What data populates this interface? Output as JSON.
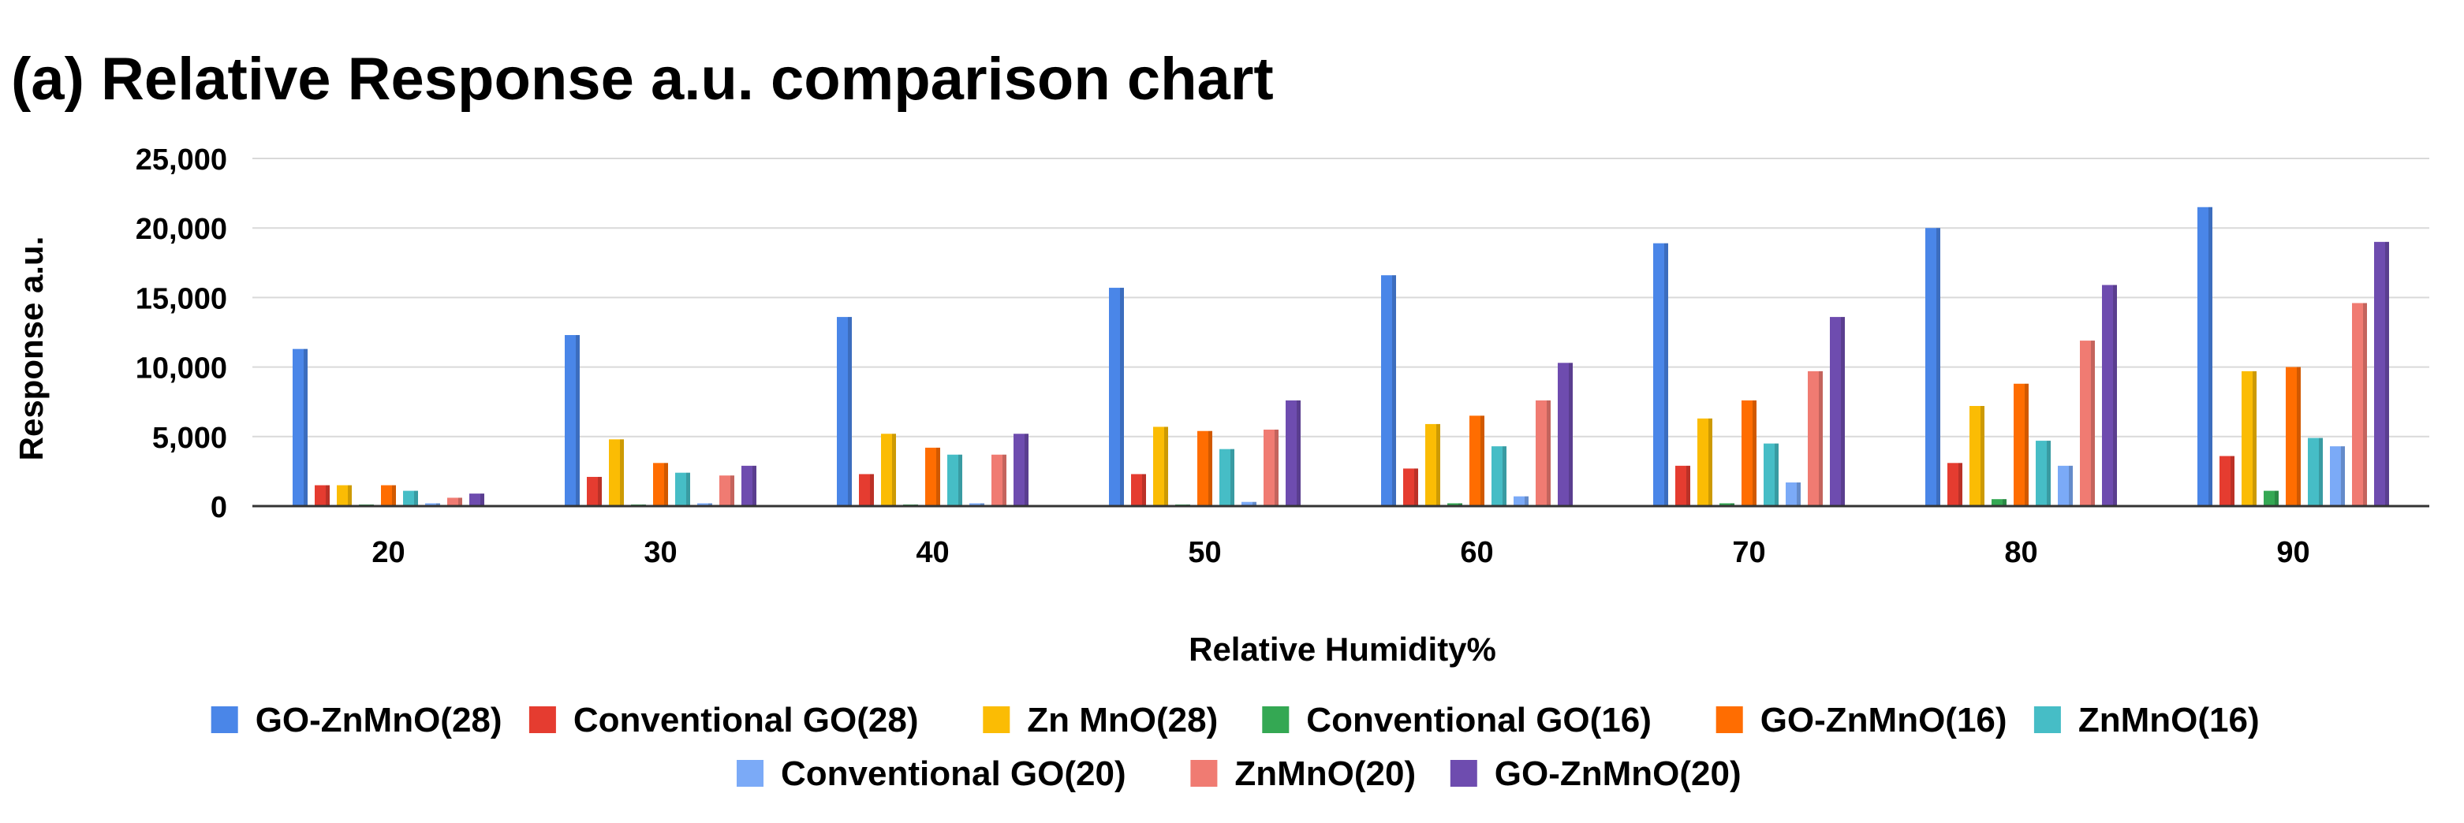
{
  "chart_data": {
    "type": "bar",
    "title": "(a)  Relative Response a.u. comparison chart",
    "xlabel": "Relative Humidity%",
    "ylabel": "Response a.u.",
    "ylim": [
      0,
      25000
    ],
    "yticks": [
      0,
      5000,
      10000,
      15000,
      20000,
      25000
    ],
    "ytick_labels": [
      "0",
      "5,000",
      "10,000",
      "15,000",
      "20,000",
      "25,000"
    ],
    "grid": true,
    "legend_position": "bottom",
    "categories": [
      "20",
      "30",
      "40",
      "50",
      "60",
      "70",
      "80",
      "90"
    ],
    "series": [
      {
        "name": "GO-ZnMnO(28)",
        "color": "#4a86e8",
        "values": [
          11300,
          12300,
          13600,
          15700,
          16600,
          18900,
          20000,
          21500
        ]
      },
      {
        "name": "Conventional GO(28)",
        "color": "#e53c30",
        "values": [
          1500,
          2100,
          2300,
          2300,
          2700,
          2900,
          3100,
          3600
        ]
      },
      {
        "name": "Zn MnO(28)",
        "color": "#fbbc04",
        "values": [
          1500,
          4800,
          5200,
          5700,
          5900,
          6300,
          7200,
          9700
        ]
      },
      {
        "name": "Conventional GO(16)",
        "color": "#34a853",
        "values": [
          100,
          100,
          100,
          100,
          200,
          200,
          500,
          1100
        ]
      },
      {
        "name": "GO-ZnMnO(16)",
        "color": "#ff6d01",
        "values": [
          1500,
          3100,
          4200,
          5400,
          6500,
          7600,
          8800,
          10000
        ]
      },
      {
        "name": "ZnMnO(16)",
        "color": "#46bdc6",
        "values": [
          1100,
          2400,
          3700,
          4100,
          4300,
          4500,
          4700,
          4900
        ]
      },
      {
        "name": "Conventional GO(20)",
        "color": "#7baaf7",
        "values": [
          200,
          200,
          200,
          300,
          700,
          1700,
          2900,
          4300
        ]
      },
      {
        "name": "ZnMnO(20)",
        "color": "#f07b72",
        "values": [
          600,
          2200,
          3700,
          5500,
          7600,
          9700,
          11900,
          14600
        ]
      },
      {
        "name": "GO-ZnMnO(20)",
        "color": "#6e4caf",
        "values": [
          900,
          2900,
          5200,
          7600,
          10300,
          13600,
          15900,
          19000
        ]
      }
    ]
  }
}
